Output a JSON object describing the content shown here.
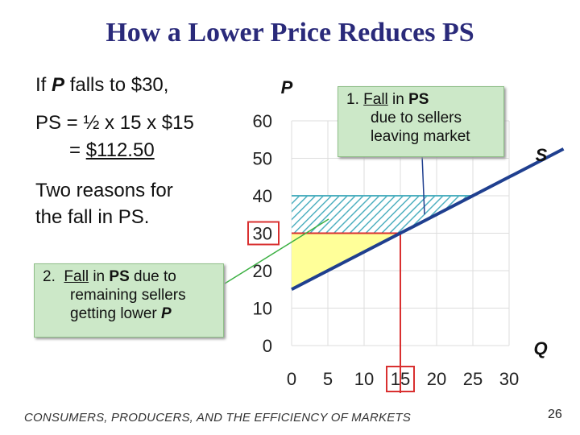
{
  "slide": {
    "title": "How a Lower Price Reduces PS",
    "line1": {
      "pre": "If ",
      "var": "P",
      "post": "  falls to $30,"
    },
    "line2": "PS = ½ x 15 x $15",
    "line3": {
      "pre": "= ",
      "value": "$112.50"
    },
    "line4": "Two reasons for",
    "line5": "the fall in PS.",
    "callout2": {
      "num": "2.",
      "w1": "Fall",
      "w2": " in ",
      "w3": "PS",
      "w4": " due to",
      "l2": "remaining sellers",
      "l3pre": "getting lower ",
      "l3var": "P"
    },
    "footer": "CONSUMERS, PRODUCERS, AND THE EFFICIENCY OF MARKETS",
    "page_number": "26"
  },
  "chart_data": {
    "type": "line",
    "ylabel": "P",
    "xlabel": "Q",
    "xlim": [
      0,
      30
    ],
    "ylim": [
      0,
      60
    ],
    "x_ticks": [
      "0",
      "5",
      "10",
      "15",
      "20",
      "25",
      "30"
    ],
    "y_ticks": [
      "0",
      "10",
      "20",
      "30",
      "40",
      "50",
      "60"
    ],
    "grid": true,
    "series": [
      {
        "name": "S",
        "color": "#1f3f8f",
        "x": [
          0,
          45
        ],
        "y": [
          15,
          60
        ]
      }
    ],
    "regions": [
      {
        "label": "Fall in PS due to sellers leaving market",
        "color": "#4fb0c0",
        "pattern": "hatched",
        "points": [
          [
            0,
            40
          ],
          [
            25,
            40
          ],
          [
            15,
            30
          ],
          [
            0,
            30
          ]
        ]
      },
      {
        "label": "PS",
        "color": "#ffff99",
        "points": [
          [
            0,
            30
          ],
          [
            15,
            30
          ],
          [
            0,
            15
          ]
        ]
      }
    ],
    "annotations": {
      "callout1": {
        "num": "1.",
        "w1": "Fall",
        "w2": " in ",
        "w3": "PS",
        "l2": "due to sellers",
        "l3": "leaving market"
      }
    },
    "highlight": {
      "price": 30,
      "quantity": 15,
      "color": "#d93030"
    },
    "callout_line_color": "#3cb043"
  }
}
